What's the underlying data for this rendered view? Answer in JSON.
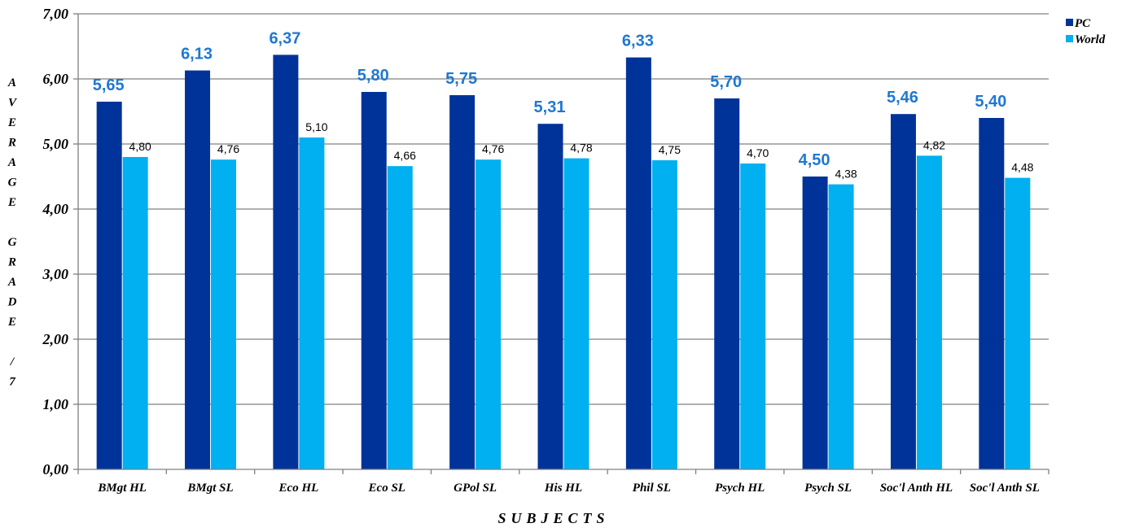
{
  "chart_data": {
    "type": "bar",
    "xlabel": "SUBJECTS",
    "ylabel": "AVERAGE GRADE / 7",
    "ylabel_letters": [
      "A",
      "V",
      "E",
      "R",
      "A",
      "G",
      "E",
      "",
      "G",
      "R",
      "A",
      "D",
      "E",
      "",
      "/",
      "7"
    ],
    "categories": [
      "BMgt HL",
      "BMgt SL",
      "Eco HL",
      "Eco SL",
      "GPol SL",
      "His HL",
      "Phil SL",
      "Psych HL",
      "Psych SL",
      "Soc'l Anth HL",
      "Soc'l Anth SL"
    ],
    "series": [
      {
        "name": "PC",
        "color": "#003399",
        "label_color": "#1f78d1",
        "values": [
          5.65,
          6.13,
          6.37,
          5.8,
          5.75,
          5.31,
          6.33,
          5.7,
          4.5,
          5.46,
          5.4
        ],
        "labels": [
          "5,65",
          "6,13",
          "6,37",
          "5,80",
          "5,75",
          "5,31",
          "6,33",
          "5,70",
          "4,50",
          "5,46",
          "5,40"
        ]
      },
      {
        "name": "World",
        "color": "#00b0f0",
        "label_color": "#000000",
        "values": [
          4.8,
          4.76,
          5.1,
          4.66,
          4.76,
          4.78,
          4.75,
          4.7,
          4.38,
          4.82,
          4.48
        ],
        "labels": [
          "4,80",
          "4,76",
          "5,10",
          "4,66",
          "4,76",
          "4,78",
          "4,75",
          "4,70",
          "4,38",
          "4,82",
          "4,48"
        ]
      }
    ],
    "ylim": [
      0,
      7
    ],
    "yticks": [
      0,
      1,
      2,
      3,
      4,
      5,
      6,
      7
    ],
    "ytick_labels": [
      "0,00",
      "1,00",
      "2,00",
      "3,00",
      "4,00",
      "5,00",
      "6,00",
      "7,00"
    ],
    "grid": true,
    "legend": "top-right"
  }
}
